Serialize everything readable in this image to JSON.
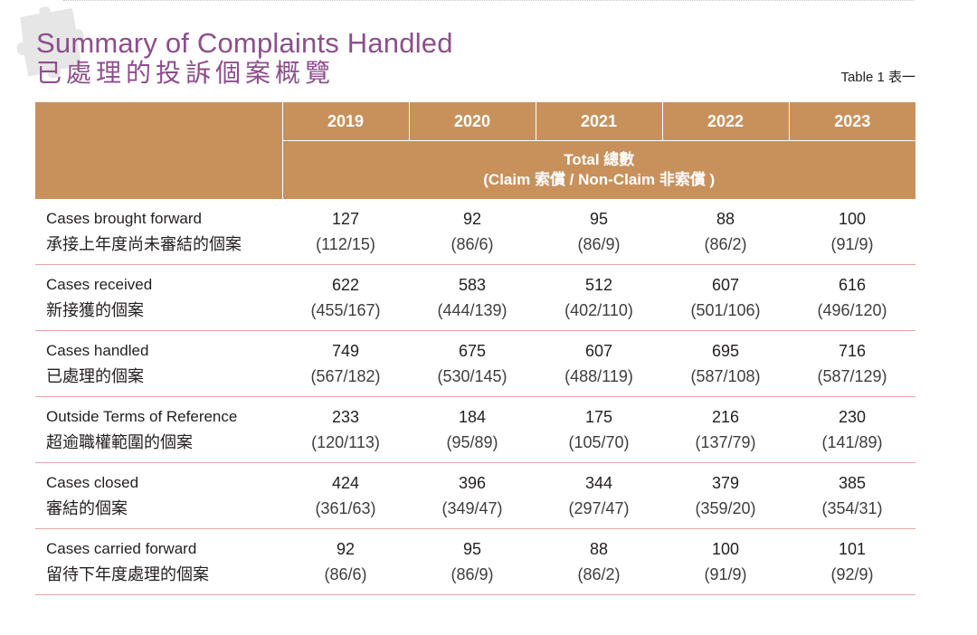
{
  "header": {
    "title_en": "Summary of Complaints Handled",
    "title_zh": "已處理的投訴個案概覽",
    "table_label": "Table 1 表一"
  },
  "table": {
    "years": [
      "2019",
      "2020",
      "2021",
      "2022",
      "2023"
    ],
    "total_line1": "Total 總數",
    "total_line2": "(Claim 索償 / Non-Claim 非索償 )",
    "rows": [
      {
        "label_en": "Cases brought forward",
        "label_zh": "承接上年度尚未審結的個案",
        "values": [
          {
            "total": "127",
            "split": "(112/15)"
          },
          {
            "total": "92",
            "split": "(86/6)"
          },
          {
            "total": "95",
            "split": "(86/9)"
          },
          {
            "total": "88",
            "split": "(86/2)"
          },
          {
            "total": "100",
            "split": "(91/9)"
          }
        ]
      },
      {
        "label_en": "Cases received",
        "label_zh": "新接獲的個案",
        "values": [
          {
            "total": "622",
            "split": "(455/167)"
          },
          {
            "total": "583",
            "split": "(444/139)"
          },
          {
            "total": "512",
            "split": "(402/110)"
          },
          {
            "total": "607",
            "split": "(501/106)"
          },
          {
            "total": "616",
            "split": "(496/120)"
          }
        ]
      },
      {
        "label_en": "Cases handled",
        "label_zh": "已處理的個案",
        "values": [
          {
            "total": "749",
            "split": "(567/182)"
          },
          {
            "total": "675",
            "split": "(530/145)"
          },
          {
            "total": "607",
            "split": "(488/119)"
          },
          {
            "total": "695",
            "split": "(587/108)"
          },
          {
            "total": "716",
            "split": "(587/129)"
          }
        ]
      },
      {
        "label_en": "Outside Terms of Reference",
        "label_zh": "超逾職權範圍的個案",
        "values": [
          {
            "total": "233",
            "split": "(120/113)"
          },
          {
            "total": "184",
            "split": "(95/89)"
          },
          {
            "total": "175",
            "split": "(105/70)"
          },
          {
            "total": "216",
            "split": "(137/79)"
          },
          {
            "total": "230",
            "split": "(141/89)"
          }
        ]
      },
      {
        "label_en": "Cases closed",
        "label_zh": "審結的個案",
        "values": [
          {
            "total": "424",
            "split": "(361/63)"
          },
          {
            "total": "396",
            "split": "(349/47)"
          },
          {
            "total": "344",
            "split": "(297/47)"
          },
          {
            "total": "379",
            "split": "(359/20)"
          },
          {
            "total": "385",
            "split": "(354/31)"
          }
        ]
      },
      {
        "label_en": "Cases carried forward",
        "label_zh": "留待下年度處理的個案",
        "values": [
          {
            "total": "92",
            "split": "(86/6)"
          },
          {
            "total": "95",
            "split": "(86/9)"
          },
          {
            "total": "88",
            "split": "(86/2)"
          },
          {
            "total": "100",
            "split": "(91/9)"
          },
          {
            "total": "101",
            "split": "(92/9)"
          }
        ]
      }
    ]
  },
  "colors": {
    "title": "#8d4e8c",
    "header_fill": "#c8915c",
    "row_rule": "#e8a7a7",
    "puzzle": "#e6e6e6"
  }
}
